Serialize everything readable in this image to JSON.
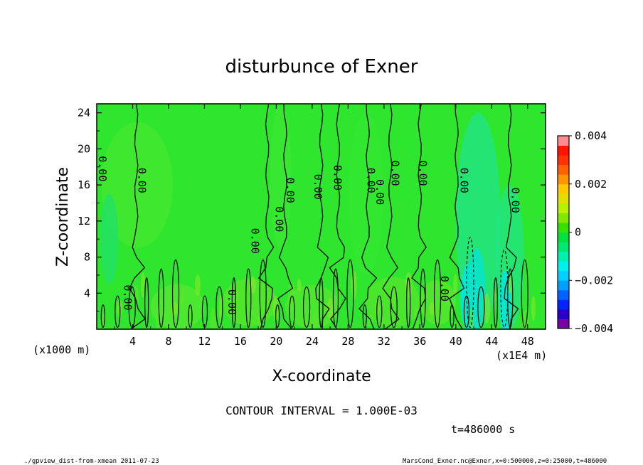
{
  "chart_data": {
    "type": "heatmap",
    "title": "disturbunce of Exner",
    "xlabel": "X-coordinate",
    "ylabel": "Z-coordinate",
    "x_unit": "(x1E4 m)",
    "y_unit": "(x1000 m)",
    "xlim": [
      0,
      50
    ],
    "ylim": [
      0,
      25
    ],
    "x_ticks": [
      4,
      8,
      12,
      16,
      20,
      24,
      28,
      32,
      36,
      40,
      44,
      48
    ],
    "y_ticks": [
      4,
      8,
      12,
      16,
      20,
      24
    ],
    "x_tick_labels": [
      "4",
      "8",
      "12",
      "16",
      "20",
      "24",
      "28",
      "32",
      "36",
      "40",
      "44",
      "48"
    ],
    "y_tick_labels": [
      "4",
      "8",
      "12",
      "16",
      "20",
      "24"
    ],
    "colorbar": {
      "min": -0.004,
      "max": 0.004,
      "tick_labels": [
        "0.004",
        "0.002",
        "0",
        "−0.002",
        "−0.004"
      ],
      "tick_values": [
        0.004,
        0.002,
        0,
        -0.002,
        -0.004
      ],
      "colors": [
        "#7b00a8",
        "#2a00c8",
        "#0024ff",
        "#0062ff",
        "#00a0ff",
        "#00d0ff",
        "#00f0f0",
        "#00f0b0",
        "#00e870",
        "#00e040",
        "#38e000",
        "#80e800",
        "#b8f000",
        "#e0e000",
        "#ffc800",
        "#ff9600",
        "#ff6400",
        "#ff3200",
        "#ff1400",
        "#ff8c8c"
      ]
    },
    "contour_label": "0.00",
    "contour_lines_x": [
      4.4,
      19.0,
      21.0,
      25.0,
      26.9,
      30.2,
      32.7,
      36.0,
      40.1,
      46.0
    ],
    "contour_labels": [
      {
        "x": 0.6,
        "y": 17.8
      },
      {
        "x": 5.0,
        "y": 16.5
      },
      {
        "x": 3.4,
        "y": 3.5
      },
      {
        "x": 15.0,
        "y": 3.0
      },
      {
        "x": 17.6,
        "y": 9.8
      },
      {
        "x": 20.3,
        "y": 12.2
      },
      {
        "x": 21.5,
        "y": 15.4
      },
      {
        "x": 24.6,
        "y": 15.8
      },
      {
        "x": 26.8,
        "y": 16.8
      },
      {
        "x": 30.5,
        "y": 16.5
      },
      {
        "x": 31.5,
        "y": 15.2
      },
      {
        "x": 33.2,
        "y": 17.3
      },
      {
        "x": 36.3,
        "y": 17.3
      },
      {
        "x": 38.7,
        "y": 4.5
      },
      {
        "x": 40.9,
        "y": 16.5
      },
      {
        "x": 46.6,
        "y": 14.3
      }
    ],
    "grid": false
  },
  "footer": {
    "contour_interval": "CONTOUR INTERVAL = 1.000E-03",
    "time": "t=486000 s",
    "script_name": "./gpview_dist-from-xmean  2011-07-23",
    "file_info": "MarsCond_Exner.nc@Exner,x=0:500000,z=0:25000,t=486000"
  }
}
